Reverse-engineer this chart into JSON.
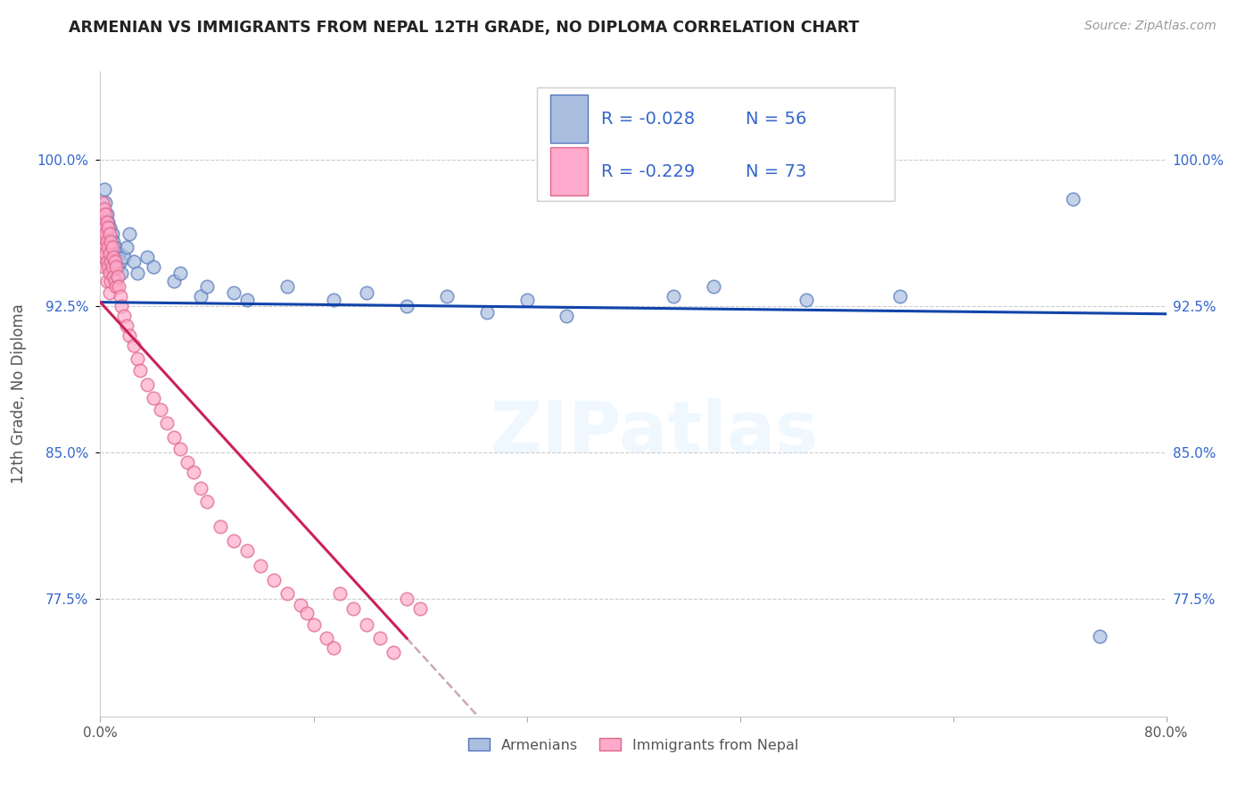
{
  "title": "ARMENIAN VS IMMIGRANTS FROM NEPAL 12TH GRADE, NO DIPLOMA CORRELATION CHART",
  "source": "Source: ZipAtlas.com",
  "ylabel": "12th Grade, No Diploma",
  "watermark": "ZIPatlas",
  "legend_armenians_R": "-0.028",
  "legend_armenians_N": "56",
  "legend_nepal_R": "-0.229",
  "legend_nepal_N": "73",
  "y_ticks": [
    0.775,
    0.85,
    0.925,
    1.0
  ],
  "y_tick_labels": [
    "77.5%",
    "85.0%",
    "92.5%",
    "100.0%"
  ],
  "xlim": [
    0.0,
    0.8
  ],
  "ylim": [
    0.715,
    1.045
  ],
  "blue_color": "#AABFE0",
  "pink_color": "#FFAACC",
  "blue_edge_color": "#5577BB",
  "pink_edge_color": "#DD6688",
  "blue_line_color": "#1144AA",
  "pink_line_color": "#CC2255",
  "pink_dash_color": "#CCAAAA",
  "grid_color": "#CCCCCC",
  "blue_scatter_x": [
    0.001,
    0.002,
    0.002,
    0.003,
    0.003,
    0.003,
    0.004,
    0.004,
    0.005,
    0.005,
    0.005,
    0.006,
    0.006,
    0.006,
    0.007,
    0.007,
    0.007,
    0.008,
    0.008,
    0.009,
    0.009,
    0.01,
    0.01,
    0.011,
    0.012,
    0.013,
    0.014,
    0.015,
    0.016,
    0.018,
    0.02,
    0.022,
    0.025,
    0.028,
    0.035,
    0.04,
    0.055,
    0.06,
    0.075,
    0.08,
    0.1,
    0.11,
    0.14,
    0.175,
    0.2,
    0.23,
    0.26,
    0.29,
    0.32,
    0.35,
    0.43,
    0.46,
    0.53,
    0.6,
    0.73,
    0.75
  ],
  "blue_scatter_y": [
    0.96,
    0.975,
    0.965,
    0.985,
    0.97,
    0.96,
    0.978,
    0.968,
    0.972,
    0.962,
    0.952,
    0.968,
    0.958,
    0.948,
    0.965,
    0.955,
    0.945,
    0.96,
    0.95,
    0.962,
    0.952,
    0.958,
    0.948,
    0.955,
    0.95,
    0.945,
    0.952,
    0.948,
    0.942,
    0.95,
    0.955,
    0.962,
    0.948,
    0.942,
    0.95,
    0.945,
    0.938,
    0.942,
    0.93,
    0.935,
    0.932,
    0.928,
    0.935,
    0.928,
    0.932,
    0.925,
    0.93,
    0.922,
    0.928,
    0.92,
    0.93,
    0.935,
    0.928,
    0.93,
    0.98,
    0.756
  ],
  "pink_scatter_x": [
    0.001,
    0.001,
    0.001,
    0.002,
    0.002,
    0.002,
    0.003,
    0.003,
    0.003,
    0.003,
    0.004,
    0.004,
    0.004,
    0.005,
    0.005,
    0.005,
    0.005,
    0.006,
    0.006,
    0.006,
    0.007,
    0.007,
    0.007,
    0.007,
    0.008,
    0.008,
    0.008,
    0.009,
    0.009,
    0.01,
    0.01,
    0.011,
    0.011,
    0.012,
    0.012,
    0.013,
    0.014,
    0.015,
    0.016,
    0.018,
    0.02,
    0.022,
    0.025,
    0.028,
    0.03,
    0.035,
    0.04,
    0.045,
    0.05,
    0.055,
    0.06,
    0.065,
    0.07,
    0.075,
    0.08,
    0.09,
    0.1,
    0.11,
    0.12,
    0.13,
    0.14,
    0.15,
    0.155,
    0.16,
    0.17,
    0.175,
    0.18,
    0.19,
    0.2,
    0.21,
    0.22,
    0.23,
    0.24
  ],
  "pink_scatter_y": [
    0.97,
    0.96,
    0.95,
    0.978,
    0.968,
    0.958,
    0.975,
    0.965,
    0.955,
    0.945,
    0.972,
    0.962,
    0.952,
    0.968,
    0.958,
    0.948,
    0.938,
    0.965,
    0.955,
    0.945,
    0.962,
    0.952,
    0.942,
    0.932,
    0.958,
    0.948,
    0.938,
    0.955,
    0.945,
    0.95,
    0.94,
    0.948,
    0.938,
    0.945,
    0.935,
    0.94,
    0.935,
    0.93,
    0.925,
    0.92,
    0.915,
    0.91,
    0.905,
    0.898,
    0.892,
    0.885,
    0.878,
    0.872,
    0.865,
    0.858,
    0.852,
    0.845,
    0.84,
    0.832,
    0.825,
    0.812,
    0.805,
    0.8,
    0.792,
    0.785,
    0.778,
    0.772,
    0.768,
    0.762,
    0.755,
    0.75,
    0.778,
    0.77,
    0.762,
    0.755,
    0.748,
    0.775,
    0.77
  ]
}
